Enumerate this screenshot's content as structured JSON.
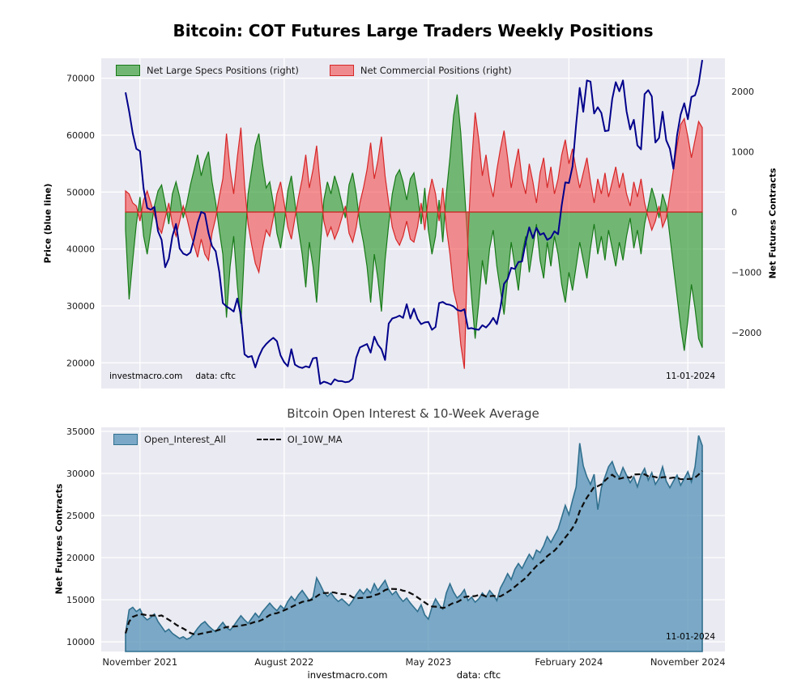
{
  "colors": {
    "plot_bg": "#eaeaf2",
    "grid": "#ffffff",
    "price": "#00008b",
    "specs_fill": "#3fa03f",
    "specs_edge": "#187a18",
    "comm_fill": "#f25050",
    "comm_edge": "#d62728",
    "oi_fill": "#4f8fb4",
    "oi_edge": "#31708f",
    "ma": "#0d0d0d"
  },
  "chart_data": [
    {
      "type": "area",
      "title": "Bitcoin: COT Futures Large Traders Weekly Positions",
      "ylabel_left": "Price (blue line)",
      "ylabel_right": "Net Futures Contracts",
      "legend": [
        "Net Large Specs Positions (right)",
        "Net Commercial Positions (right)"
      ],
      "annotations": {
        "source": "investmacro.com",
        "data_note": "data: cftc",
        "date": "11-01-2024"
      },
      "y_left_ticks": [
        20000,
        30000,
        40000,
        50000,
        60000,
        70000
      ],
      "y_right_ticks": [
        -2000,
        -1000,
        0,
        1000,
        2000
      ],
      "y_left_range": [
        15500,
        73500
      ],
      "y_right_range": [
        -2926,
        2550
      ],
      "grid": true,
      "legend_position": "upper left",
      "series": [
        {
          "name": "Price",
          "axis": "left",
          "style": "line",
          "values": [
            67500,
            64200,
            60300,
            57600,
            57200,
            50600,
            47200,
            46900,
            47400,
            43100,
            41600,
            36800,
            38300,
            42200,
            44400,
            40100,
            39200,
            38900,
            39400,
            41800,
            44600,
            46500,
            46200,
            42800,
            40500,
            39600,
            36000,
            30500,
            29900,
            29500,
            29000,
            31300,
            28400,
            21500,
            21000,
            21200,
            19200,
            21100,
            22500,
            23300,
            23900,
            24400,
            23800,
            21300,
            20100,
            19400,
            22400,
            19700,
            19300,
            19100,
            19400,
            19200,
            20800,
            20900,
            16300,
            16700,
            16500,
            16200,
            17100,
            16800,
            16800,
            16600,
            16700,
            17200,
            20900,
            22700,
            23000,
            23300,
            21800,
            24600,
            23200,
            22400,
            20500,
            26900,
            27800,
            28000,
            28300,
            27900,
            30300,
            27800,
            29500,
            27700,
            26800,
            27100,
            27200,
            25800,
            26300,
            30500,
            30700,
            30300,
            30200,
            29900,
            29300,
            29100,
            29400,
            26000,
            26100,
            25900,
            25800,
            26600,
            26200,
            26900,
            27900,
            26800,
            29700,
            33900,
            34700,
            36700,
            36500,
            37700,
            37800,
            41200,
            43800,
            41900,
            43700,
            42500,
            42800,
            41600,
            42000,
            43100,
            42600,
            47700,
            51700,
            51600,
            54500,
            61900,
            68300,
            64100,
            69600,
            69400,
            63800,
            64900,
            63900,
            60700,
            60800,
            66300,
            69300,
            67700,
            69600,
            64200,
            61000,
            62700,
            58200,
            57500,
            67200,
            67900,
            66800,
            58700,
            59500,
            64100,
            59100,
            57600,
            54100,
            60000,
            63600,
            65600,
            62800,
            66700,
            67000,
            69000,
            73200
          ]
        },
        {
          "name": "Net Large Specs Positions",
          "axis": "right",
          "style": "filled-area",
          "values": [
            -300,
            -1450,
            -800,
            -200,
            250,
            -400,
            -700,
            -300,
            100,
            350,
            450,
            150,
            -200,
            300,
            500,
            250,
            -100,
            150,
            450,
            700,
            950,
            600,
            850,
            1000,
            500,
            150,
            -300,
            -700,
            -1750,
            -900,
            -400,
            -1200,
            -1850,
            -600,
            300,
            700,
            1100,
            1300,
            800,
            400,
            500,
            150,
            -350,
            -600,
            -200,
            350,
            600,
            150,
            -300,
            -700,
            -1250,
            -500,
            -900,
            -1500,
            -600,
            200,
            500,
            300,
            600,
            400,
            150,
            -100,
            450,
            650,
            300,
            -200,
            -500,
            -900,
            -1500,
            -700,
            -1100,
            -1650,
            -800,
            -200,
            300,
            600,
            700,
            500,
            200,
            550,
            650,
            300,
            -200,
            400,
            -300,
            -700,
            -400,
            200,
            -500,
            300,
            900,
            1600,
            1950,
            1300,
            400,
            -600,
            -1400,
            -2100,
            -1500,
            -800,
            -1200,
            -600,
            -300,
            -900,
            -1300,
            -1700,
            -1100,
            -500,
            -900,
            -1300,
            -700,
            -400,
            -1000,
            -600,
            -200,
            -800,
            -1100,
            -500,
            -900,
            -400,
            -700,
            -1200,
            -1500,
            -1000,
            -1300,
            -900,
            -500,
            -800,
            -1100,
            -600,
            -200,
            -700,
            -400,
            -800,
            -300,
            -600,
            -900,
            -500,
            -800,
            -400,
            -100,
            -600,
            -300,
            -700,
            -200,
            100,
            400,
            200,
            -100,
            300,
            100,
            -400,
            -900,
            -1400,
            -1900,
            -2300,
            -1800,
            -1200,
            -1600,
            -2100,
            -2250
          ]
        },
        {
          "name": "Net Commercial Positions",
          "axis": "right",
          "style": "filled-area",
          "values": [
            350,
            300,
            150,
            100,
            -150,
            200,
            350,
            150,
            -50,
            -250,
            -350,
            -100,
            150,
            -200,
            -400,
            -150,
            100,
            -100,
            -350,
            -550,
            -750,
            -450,
            -700,
            -800,
            -350,
            -100,
            250,
            550,
            1300,
            700,
            300,
            900,
            1400,
            450,
            -200,
            -550,
            -850,
            -1000,
            -600,
            -300,
            -400,
            -100,
            300,
            500,
            150,
            -250,
            -450,
            -100,
            250,
            550,
            950,
            400,
            700,
            1100,
            450,
            -150,
            -400,
            -250,
            -450,
            -300,
            -100,
            100,
            -350,
            -500,
            -250,
            150,
            400,
            700,
            1150,
            550,
            850,
            1250,
            600,
            150,
            -250,
            -450,
            -550,
            -400,
            -150,
            -450,
            -500,
            -250,
            150,
            -300,
            250,
            550,
            300,
            -150,
            400,
            -250,
            -700,
            -1300,
            -1550,
            -2200,
            -2600,
            -400,
            800,
            1650,
            1200,
            600,
            950,
            500,
            250,
            700,
            1050,
            1350,
            900,
            400,
            750,
            1050,
            550,
            300,
            800,
            500,
            150,
            650,
            900,
            400,
            750,
            300,
            550,
            950,
            1200,
            800,
            1050,
            700,
            400,
            650,
            900,
            500,
            150,
            550,
            300,
            650,
            250,
            500,
            750,
            400,
            650,
            300,
            100,
            500,
            250,
            550,
            150,
            -100,
            -300,
            -150,
            100,
            -250,
            -100,
            300,
            700,
            1100,
            1450,
            1550,
            1250,
            900,
            1200,
            1500,
            1400
          ]
        }
      ]
    },
    {
      "type": "area",
      "title": "Bitcoin Open Interest & 10-Week Average",
      "ylabel": "Net Futures Contracts",
      "legend": [
        "Open_Interest_All",
        "OI_10W_MA"
      ],
      "annotations": {
        "source": "investmacro.com",
        "data_note": "data: cftc",
        "date": "11-01-2024"
      },
      "x_tick_labels": [
        "November 2021",
        "August 2022",
        "May 2023",
        "February 2024",
        "November 2024"
      ],
      "x_tick_indices": [
        4,
        44,
        84,
        123,
        156
      ],
      "y_ticks": [
        10000,
        15000,
        20000,
        25000,
        30000,
        35000
      ],
      "y_range": [
        8850,
        35480
      ],
      "grid": true,
      "legend_position": "upper left",
      "series": [
        {
          "name": "Open_Interest_All",
          "style": "filled-area",
          "values": [
            11000,
            13800,
            14100,
            13600,
            13900,
            13000,
            12600,
            12900,
            13300,
            12400,
            11800,
            11200,
            11500,
            11000,
            10700,
            10400,
            10600,
            10300,
            10500,
            11000,
            11600,
            12100,
            12400,
            11900,
            11500,
            11200,
            11800,
            12300,
            11700,
            11400,
            11900,
            12500,
            13100,
            12600,
            12200,
            12800,
            13400,
            12900,
            13600,
            14100,
            14600,
            14100,
            13700,
            14300,
            13900,
            14800,
            15400,
            14900,
            15600,
            16100,
            15500,
            14900,
            15300,
            17600,
            16800,
            15900,
            15400,
            15800,
            15200,
            14800,
            15100,
            14700,
            14300,
            14900,
            15600,
            16200,
            15700,
            16300,
            15800,
            16900,
            16100,
            16700,
            17300,
            16200,
            15600,
            16000,
            15300,
            14800,
            15200,
            14600,
            14100,
            13600,
            14400,
            13200,
            12700,
            14100,
            15100,
            14400,
            13900,
            15800,
            16900,
            15900,
            15200,
            15600,
            16200,
            14900,
            15300,
            14700,
            15100,
            15800,
            15300,
            16100,
            15600,
            14900,
            16400,
            17200,
            18100,
            17400,
            18600,
            19300,
            18700,
            19600,
            20400,
            19800,
            20900,
            20600,
            21400,
            22500,
            21800,
            22600,
            23400,
            24800,
            26200,
            25100,
            26800,
            28400,
            33600,
            30900,
            29600,
            28700,
            29900,
            25700,
            28300,
            29600,
            30800,
            31400,
            30200,
            29500,
            30700,
            29800,
            28900,
            29600,
            28400,
            29800,
            30600,
            29200,
            30100,
            28700,
            29400,
            30800,
            29100,
            28300,
            29100,
            29800,
            28600,
            29400,
            30200,
            29000,
            30800,
            34500,
            33300
          ]
        },
        {
          "name": "OI_10W_MA",
          "style": "dashed-line",
          "derived": "10-week moving average of Open_Interest_All"
        }
      ]
    }
  ]
}
